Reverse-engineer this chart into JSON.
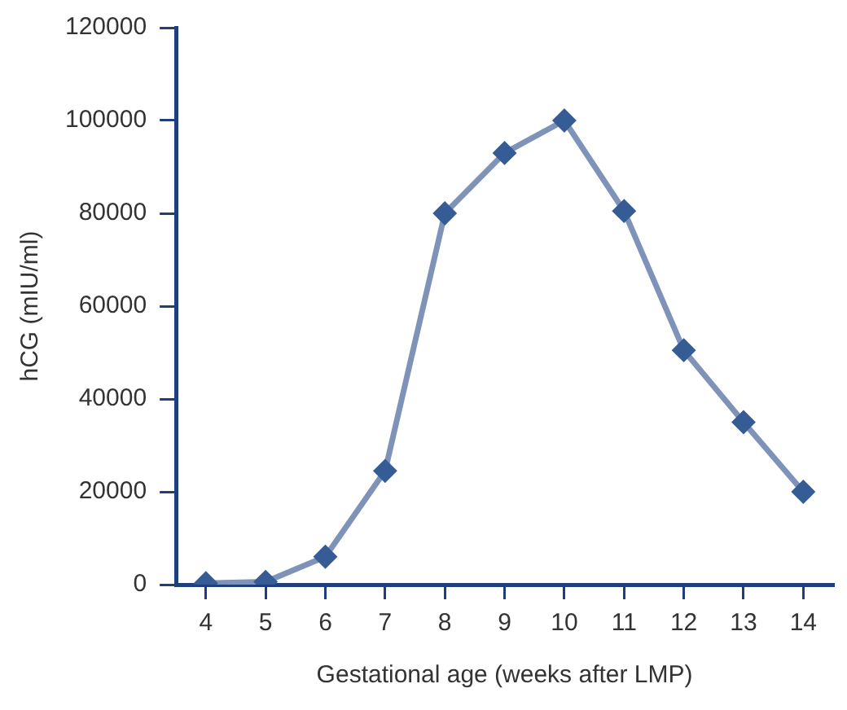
{
  "chart_data": {
    "type": "line",
    "xlabel": "Gestational age (weeks after LMP)",
    "ylabel": "hCG (mIU/ml)",
    "categories": [
      "4",
      "5",
      "6",
      "7",
      "8",
      "9",
      "10",
      "11",
      "12",
      "13",
      "14"
    ],
    "series": [
      {
        "color": "#7f93b8",
        "values": [
          300,
          600,
          6000,
          24500,
          80000,
          93000,
          100000,
          80500,
          50500,
          35000,
          20000
        ]
      }
    ],
    "ylim": [
      0,
      120000
    ],
    "yticks": [
      0,
      20000,
      40000,
      60000,
      80000,
      100000,
      120000
    ],
    "grid": false,
    "legend": false,
    "marker": "diamond",
    "line_style": "solid"
  }
}
